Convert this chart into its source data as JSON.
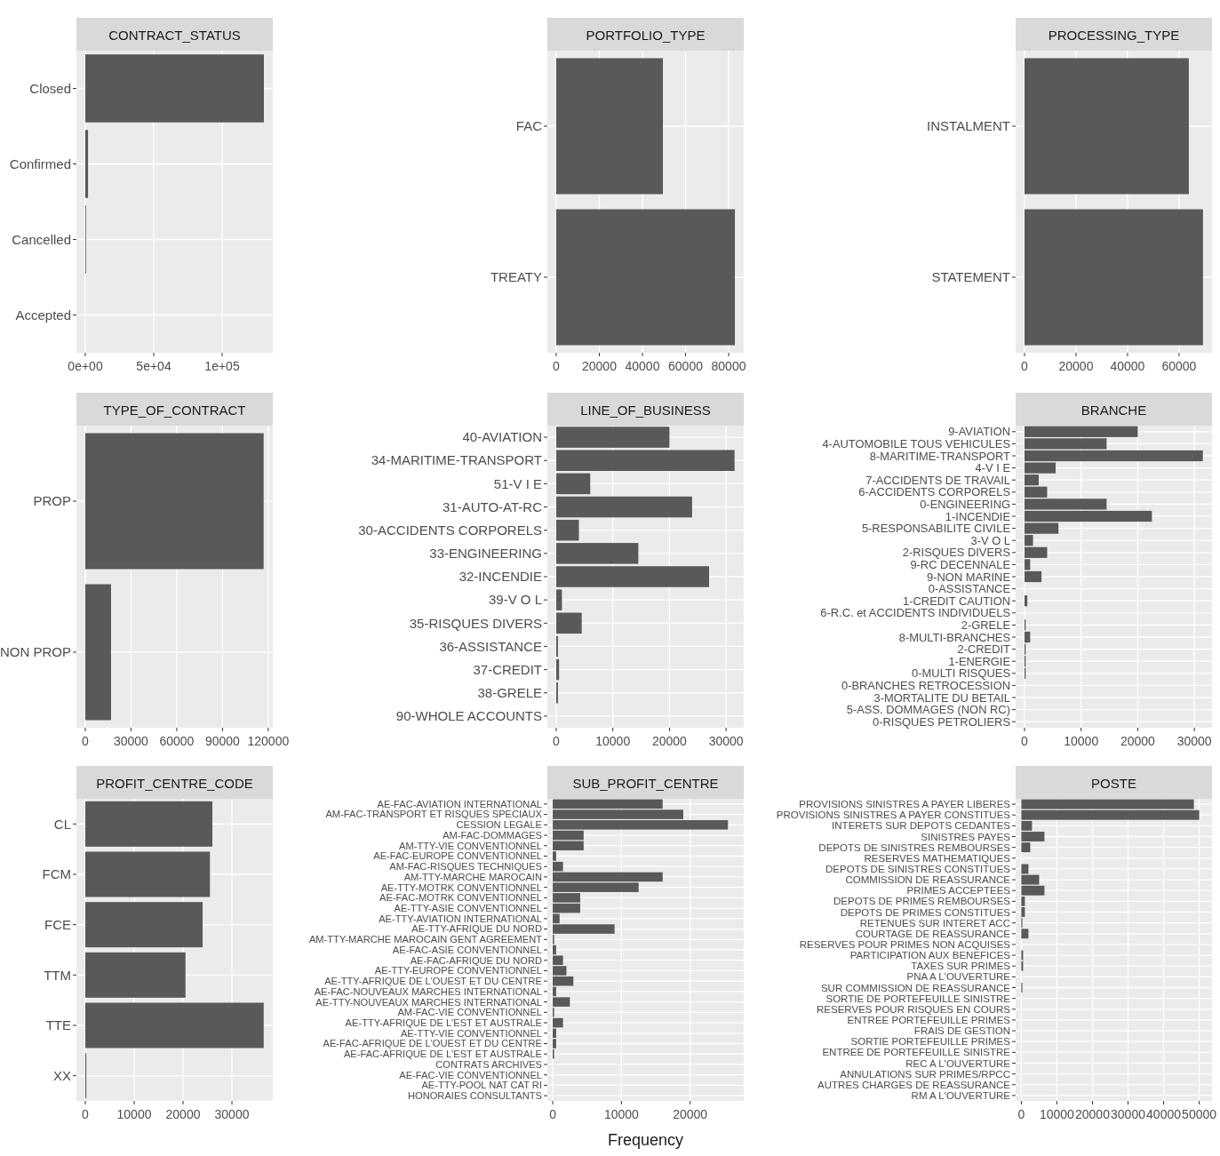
{
  "chart_data": [
    {
      "type": "bar",
      "orientation": "horizontal",
      "title": "CONTRACT_STATUS",
      "categories": [
        "Closed",
        "Confirmed",
        "Cancelled",
        "Accepted"
      ],
      "values": [
        130500,
        2000,
        500,
        0
      ],
      "color": "#595959",
      "xlim": [
        -6500,
        137000
      ],
      "xticks": [
        {
          "value": 0,
          "label": "0e+00"
        },
        {
          "value": 50000,
          "label": "5e+04"
        },
        {
          "value": 100000,
          "label": "1e+05"
        }
      ],
      "grid": true
    },
    {
      "type": "bar",
      "orientation": "horizontal",
      "title": "PORTFOLIO_TYPE",
      "categories": [
        "FAC",
        "TREATY"
      ],
      "values": [
        49500,
        82900
      ],
      "color": "#595959",
      "xlim": [
        -4100,
        87000
      ],
      "xticks": [
        0,
        20000,
        40000,
        60000,
        80000
      ],
      "grid": true
    },
    {
      "type": "bar",
      "orientation": "horizontal",
      "title": "PROCESSING_TYPE",
      "categories": [
        "INSTALMENT",
        "STATEMENT"
      ],
      "values": [
        63800,
        69300
      ],
      "color": "#595959",
      "xlim": [
        -3450,
        72800
      ],
      "xticks": [
        0,
        20000,
        40000,
        60000
      ],
      "grid": true
    },
    {
      "type": "bar",
      "orientation": "horizontal",
      "title": "TYPE_OF_CONTRACT",
      "categories": [
        "PROP",
        "NON PROP"
      ],
      "values": [
        117000,
        16900
      ],
      "color": "#595959",
      "xlim": [
        -5800,
        123000
      ],
      "xticks": [
        0,
        30000,
        60000,
        90000,
        120000
      ],
      "grid": true
    },
    {
      "type": "bar",
      "orientation": "horizontal",
      "title": "LINE_OF_BUSINESS",
      "categories": [
        "40-AVIATION",
        "34-MARITIME-TRANSPORT",
        "51-V I E",
        "31-AUTO-AT-RC",
        "30-ACCIDENTS CORPORELS",
        "33-ENGINEERING",
        "32-INCENDIE",
        "39-V O L",
        "35-RISQUES DIVERS",
        "36-ASSISTANCE",
        "37-CREDIT",
        "38-GRELE",
        "90-WHOLE ACCOUNTS"
      ],
      "values": [
        20000,
        31500,
        6000,
        24000,
        4000,
        14500,
        27000,
        1000,
        4500,
        300,
        500,
        300,
        0
      ],
      "color": "#595959",
      "xlim": [
        -1570,
        33120
      ],
      "xticks": [
        0,
        10000,
        20000,
        30000
      ],
      "grid": true
    },
    {
      "type": "bar",
      "orientation": "horizontal",
      "title": "BRANCHE",
      "categories": [
        "9-AVIATION",
        "4-AUTOMOBILE TOUS VEHICULES",
        "8-MARITIME-TRANSPORT",
        "4-V I E",
        "7-ACCIDENTS DE TRAVAIL",
        "6-ACCIDENTS CORPORELS",
        "0-ENGINEERING",
        "1-INCENDIE",
        "5-RESPONSABILITE CIVILE",
        "3-V O L",
        "2-RISQUES DIVERS",
        "9-RC DECENNALE",
        "9-NON MARINE",
        "0-ASSISTANCE",
        "1-CREDIT CAUTION",
        "6-R.C. et ACCIDENTS INDIVIDUELS",
        "2-GRELE",
        "8-MULTI-BRANCHES",
        "2-CREDIT",
        "1-ENERGIE",
        "0-MULTI RISQUES",
        "0-BRANCHES RETROCESSION",
        "3-MORTALITE DU BETAIL",
        "5-ASS. DOMMAGES (NON RC)",
        "0-RISQUES PETROLIERS"
      ],
      "values": [
        20000,
        14500,
        31500,
        5500,
        2500,
        4000,
        14500,
        22500,
        6000,
        1500,
        4000,
        1000,
        3000,
        0,
        500,
        0,
        200,
        1000,
        200,
        200,
        200,
        0,
        0,
        0,
        0
      ],
      "color": "#595959",
      "xlim": [
        -1570,
        33120
      ],
      "xticks": [
        0,
        10000,
        20000,
        30000
      ],
      "grid": true
    },
    {
      "type": "bar",
      "orientation": "horizontal",
      "title": "PROFIT_CENTRE_CODE",
      "categories": [
        "CL",
        "FCM",
        "FCE",
        "TTM",
        "TTE",
        "XX"
      ],
      "values": [
        26000,
        25500,
        24000,
        20500,
        36500,
        200
      ],
      "color": "#595959",
      "xlim": [
        -1820,
        38360
      ],
      "xticks": [
        0,
        10000,
        20000,
        30000
      ],
      "grid": true
    },
    {
      "type": "bar",
      "orientation": "horizontal",
      "title": "SUB_PROFIT_CENTRE",
      "xlabel": "Frequency",
      "categories": [
        "AE-FAC-AVIATION INTERNATIONAL",
        "AM-FAC-TRANSPORT ET RISQUES SPECIAUX",
        "CESSION LEGALE",
        "AM-FAC-DOMMAGES",
        "AM-TTY-VIE CONVENTIONNEL",
        "AE-FAC-EUROPE CONVENTIONNEL",
        "AM-FAC-RISQUES TECHNIQUES",
        "AM-TTY-MARCHE MAROCAIN",
        "AE-TTY-MOTRK CONVENTIONNEL",
        "AE-FAC-MOTRK CONVENTIONNEL",
        "AE-TTY-ASIE CONVENTIONNEL",
        "AE-TTY-AVIATION INTERNATIONAL",
        "AE-TTY-AFRIQUE DU NORD",
        "AM-TTY-MARCHE MAROCAIN GENT AGREEMENT",
        "AE-FAC-ASIE CONVENTIONNEL",
        "AE-FAC-AFRIQUE DU NORD",
        "AE-TTY-EUROPE CONVENTIONNEL",
        "AE-TTY-AFRIQUE DE L'OUEST ET DU CENTRE",
        "AE-FAC-NOUVEAUX MARCHES INTERNATIONAL",
        "AE-TTY-NOUVEAUX MARCHES INTERNATIONAL",
        "AM-FAC-VIE CONVENTIONNEL",
        "AE-TTY-AFRIQUE DE L'EST ET AUSTRALE",
        "AE-TTY-VIE CONVENTIONNEL",
        "AE-FAC-AFRIQUE DE L'OUEST ET DU CENTRE",
        "AE-FAC-AFRIQUE DE L'EST ET AUSTRALE",
        "CONTRATS ARCHIVES",
        "AE-FAC-VIE CONVENTIONNEL",
        "AE-TTY-POOL NAT CAT RI",
        "HONORAIES CONSULTANTS"
      ],
      "values": [
        16000,
        19000,
        25500,
        4500,
        4500,
        500,
        1500,
        16000,
        12500,
        4000,
        4000,
        1000,
        9000,
        200,
        500,
        1500,
        2000,
        3000,
        500,
        2500,
        200,
        1500,
        500,
        500,
        200,
        0,
        0,
        0,
        0
      ],
      "color": "#595959",
      "xlim": [
        -780,
        27800
      ],
      "xticks": [
        0,
        10000,
        20000
      ],
      "grid": true
    },
    {
      "type": "bar",
      "orientation": "horizontal",
      "title": "POSTE",
      "categories": [
        "PROVISIONS SINISTRES A PAYER LIBERES",
        "PROVISIONS SINISTRES A PAYER CONSTITUES",
        "INTERETS SUR DEPOTS CEDANTES",
        "SINISTRES PAYES",
        "DEPOTS DE SINISTRES REMBOURSES",
        "RESERVES MATHEMATIQUES",
        "DEPOTS DE SINISTRES CONSTITUES",
        "COMMISSION DE REASSURANCE",
        "PRIMES ACCEPTEES",
        "DEPOTS DE PRIMES REMBOURSES",
        "DEPOTS DE PRIMES CONSTITUES",
        "RETENUES SUR INTERET ACC",
        "COURTAGE DE REASSURANCE",
        "RESERVES POUR PRIMES NON ACQUISES",
        "PARTICIPATION AUX BENEFICES",
        "TAXES SUR PRIMES",
        "PNA A L'OUVERTURE",
        "SUR COMMISSION DE REASSURANCE",
        "SORTIE DE PORTEFEUILLE SINISTRE",
        "RESERVES POUR RISQUES EN COURS",
        "ENTREE PORTEFEUILLE PRIMES",
        "FRAIS DE GESTION",
        "SORTIE PORTEFEUILLE PRIMES",
        "ENTREE DE PORTEFEUILLE SINISTRE",
        "REC A L'OUVERTURE",
        "ANNULATIONS SUR PRIMES/RPCC",
        "AUTRES CHARGES DE REASSURANCE",
        "RM A L'OUVERTURE"
      ],
      "values": [
        48500,
        50000,
        3000,
        6500,
        2500,
        0,
        2000,
        5000,
        6500,
        1000,
        1000,
        300,
        2000,
        0,
        500,
        500,
        0,
        300,
        0,
        0,
        0,
        0,
        0,
        0,
        0,
        0,
        0,
        0
      ],
      "color": "#595959",
      "xlim": [
        -1600,
        53600
      ],
      "xticks": [
        0,
        10000,
        20000,
        30000,
        40000,
        50000
      ],
      "grid": true
    }
  ]
}
